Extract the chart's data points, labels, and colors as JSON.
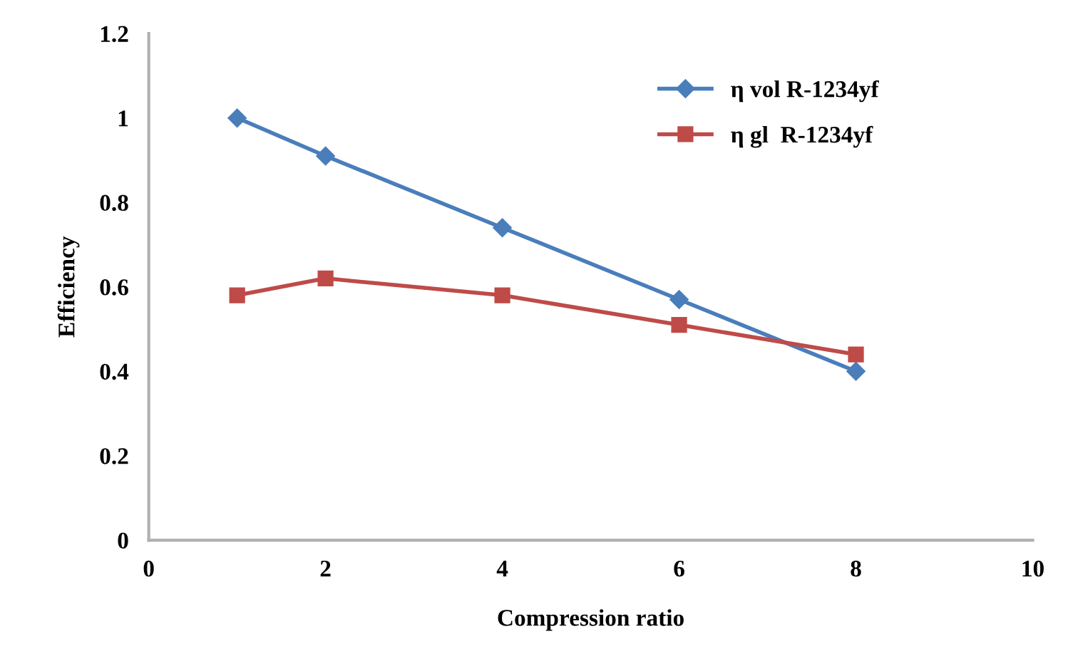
{
  "chart_data": {
    "type": "line",
    "xlabel": "Compression ratio",
    "ylabel": "Efficiency",
    "x": [
      1,
      2,
      4,
      6,
      8
    ],
    "series": [
      {
        "name": "η vol R-1234yf",
        "color": "#4a7ebb",
        "marker": "diamond",
        "values": [
          1.0,
          0.91,
          0.74,
          0.57,
          0.4
        ]
      },
      {
        "name": "η gl  R-1234yf",
        "color": "#be4b48",
        "marker": "square",
        "values": [
          0.58,
          0.62,
          0.58,
          0.51,
          0.44
        ]
      }
    ],
    "xlim": [
      0,
      10
    ],
    "xticks": [
      0,
      2,
      4,
      6,
      8,
      10
    ],
    "ylim": [
      0,
      1.2
    ],
    "yticks": [
      0,
      0.2,
      0.4,
      0.6,
      0.8,
      1,
      1.2
    ],
    "grid": false,
    "legend": "top right",
    "line_style": "solid"
  }
}
